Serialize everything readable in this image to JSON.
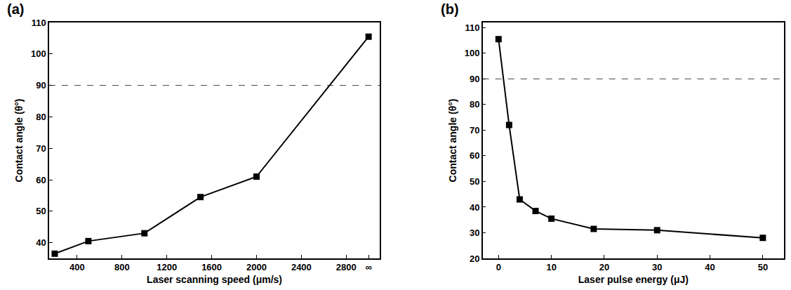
{
  "chart_data": [
    {
      "type": "line",
      "panel": "(a)",
      "x_label": "Laser scanning speed (μm/s)",
      "y_label": "Contact angle (θ°)",
      "x": [
        200,
        500,
        1000,
        1500,
        2000,
        3000
      ],
      "values": [
        36.5,
        40.5,
        43,
        54.5,
        61,
        105.5
      ],
      "color": "#000000",
      "marker": "square",
      "line_style": "solid",
      "xlim": [
        150,
        3100
      ],
      "xticks": [
        400,
        800,
        1200,
        1600,
        2000,
        2400,
        2800,
        {
          "value": 3000,
          "label": "∞"
        }
      ],
      "ylim": [
        35,
        110
      ],
      "yticks": [
        40,
        50,
        60,
        70,
        80,
        90,
        100,
        110
      ],
      "reference_line": 90,
      "grid": false
    },
    {
      "type": "line",
      "panel": "(b)",
      "x_label": "Laser pulse energy (μJ)",
      "y_label": "Contact angle (θ°)",
      "x": [
        0,
        2,
        4,
        7,
        10,
        18,
        30,
        50
      ],
      "values": [
        105.5,
        72,
        43,
        38.5,
        35.5,
        31.5,
        31,
        28
      ],
      "color": "#000000",
      "marker": "square",
      "line_style": "solid",
      "xlim": [
        -3,
        54
      ],
      "xticks": [
        0,
        10,
        20,
        30,
        40,
        50
      ],
      "ylim": [
        20,
        112
      ],
      "yticks": [
        20,
        30,
        40,
        50,
        60,
        70,
        80,
        90,
        100,
        110
      ],
      "reference_line": 90,
      "grid": false
    }
  ]
}
